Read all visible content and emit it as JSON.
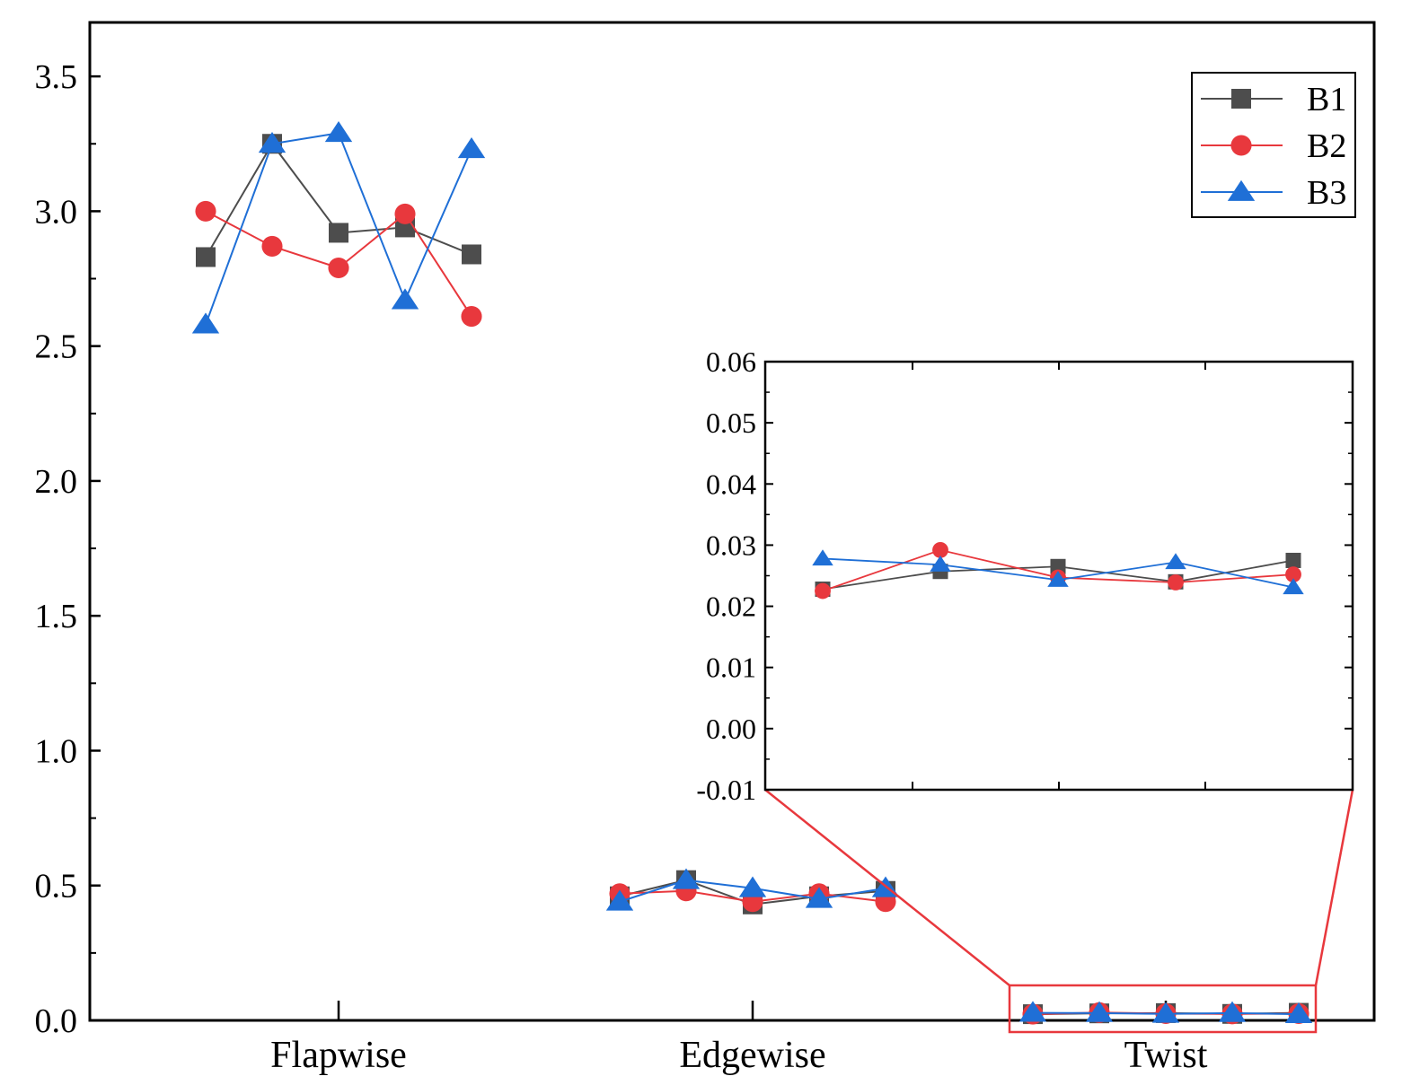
{
  "chart_data": [
    {
      "id": "main",
      "type": "line",
      "categories": [
        "Flapwise",
        "Edgewise",
        "Twist"
      ],
      "x_index": [
        1,
        2,
        3,
        4,
        5
      ],
      "ylim": [
        0,
        3.7
      ],
      "yticks": [
        "0.0",
        "0.5",
        "1.0",
        "1.5",
        "2.0",
        "2.5",
        "3.0",
        "3.5"
      ],
      "ytick_values": [
        0,
        0.5,
        1.0,
        1.5,
        2.0,
        2.5,
        3.0,
        3.5
      ],
      "legend": {
        "position": "top-right",
        "entries": [
          "B1",
          "B2",
          "B3"
        ]
      },
      "series": [
        {
          "name": "B1",
          "color": "#4d4d4d",
          "marker": "square",
          "groups": {
            "Flapwise": [
              2.83,
              3.25,
              2.92,
              2.94,
              2.84
            ],
            "Edgewise": [
              0.46,
              0.52,
              0.43,
              0.46,
              0.48
            ],
            "Twist": [
              0.023,
              0.026,
              0.027,
              0.024,
              0.028
            ]
          }
        },
        {
          "name": "B2",
          "color": "#e8383d",
          "marker": "circle",
          "groups": {
            "Flapwise": [
              3.0,
              2.87,
              2.79,
              2.99,
              2.61
            ],
            "Edgewise": [
              0.47,
              0.48,
              0.44,
              0.47,
              0.44
            ],
            "Twist": [
              0.023,
              0.029,
              0.025,
              0.024,
              0.025
            ]
          }
        },
        {
          "name": "B3",
          "color": "#1f6fd6",
          "marker": "triangle",
          "groups": {
            "Flapwise": [
              2.58,
              3.25,
              3.29,
              2.67,
              3.23
            ],
            "Edgewise": [
              0.44,
              0.52,
              0.49,
              0.45,
              0.49
            ],
            "Twist": [
              0.028,
              0.027,
              0.024,
              0.027,
              0.023
            ]
          }
        }
      ]
    },
    {
      "id": "inset",
      "type": "line",
      "description_group": "Twist",
      "ylim": [
        -0.01,
        0.06
      ],
      "yticks": [
        "-0.01",
        "0.00",
        "0.01",
        "0.02",
        "0.03",
        "0.04",
        "0.05",
        "0.06"
      ],
      "ytick_values": [
        -0.01,
        0.0,
        0.01,
        0.02,
        0.03,
        0.04,
        0.05,
        0.06
      ],
      "series": [
        {
          "name": "B1",
          "values": [
            0.0228,
            0.0257,
            0.0265,
            0.024,
            0.0275
          ]
        },
        {
          "name": "B2",
          "values": [
            0.0225,
            0.0292,
            0.0247,
            0.0239,
            0.0252
          ]
        },
        {
          "name": "B3",
          "values": [
            0.0278,
            0.0268,
            0.0243,
            0.0272,
            0.0231
          ]
        }
      ]
    }
  ]
}
